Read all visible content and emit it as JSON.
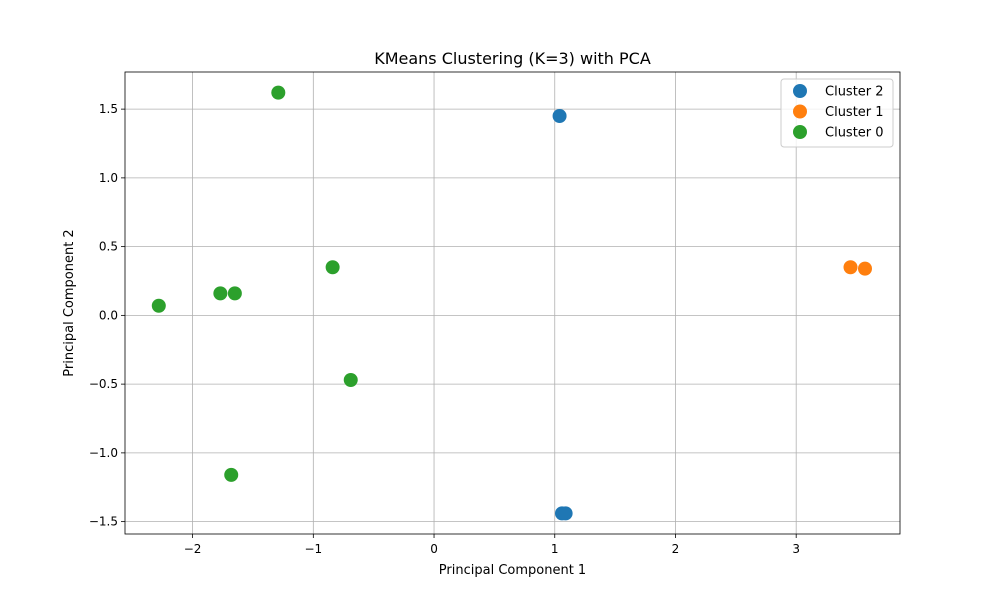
{
  "chart_data": {
    "type": "scatter",
    "title": "KMeans Clustering (K=3) with PCA",
    "xlabel": "Principal Component 1",
    "ylabel": "Principal Component 2",
    "xlim": [
      -2.56,
      3.86
    ],
    "ylim": [
      -1.59,
      1.77
    ],
    "xticks": [
      -2,
      -1,
      0,
      1,
      2,
      3
    ],
    "yticks": [
      -1.5,
      -1.0,
      -0.5,
      0.0,
      0.5,
      1.0,
      1.5
    ],
    "xtick_labels": [
      "−2",
      "−1",
      "0",
      "1",
      "2",
      "3"
    ],
    "ytick_labels": [
      "−1.5",
      "−1.0",
      "−0.5",
      "0.0",
      "0.5",
      "1.0",
      "1.5"
    ],
    "grid": true,
    "legend_position": "top-right",
    "series": [
      {
        "name": "Cluster 2",
        "color": "#1f77b4",
        "points": [
          {
            "x": 1.04,
            "y": 1.45
          },
          {
            "x": 1.06,
            "y": -1.44
          },
          {
            "x": 1.09,
            "y": -1.44
          }
        ]
      },
      {
        "name": "Cluster 1",
        "color": "#ff7f0e",
        "points": [
          {
            "x": 3.45,
            "y": 0.35
          },
          {
            "x": 3.57,
            "y": 0.34
          }
        ]
      },
      {
        "name": "Cluster 0",
        "color": "#2ca02c",
        "points": [
          {
            "x": -1.29,
            "y": 1.62
          },
          {
            "x": -0.84,
            "y": 0.35
          },
          {
            "x": -1.77,
            "y": 0.16
          },
          {
            "x": -1.65,
            "y": 0.16
          },
          {
            "x": -2.28,
            "y": 0.07
          },
          {
            "x": -0.69,
            "y": -0.47
          },
          {
            "x": -1.68,
            "y": -1.16
          }
        ]
      }
    ]
  }
}
